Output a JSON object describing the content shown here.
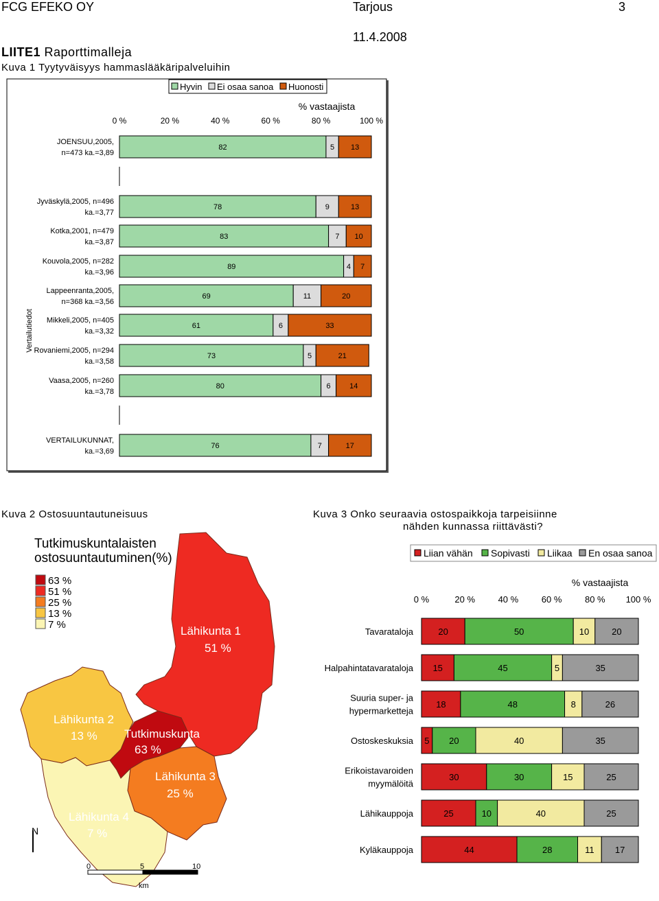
{
  "header": {
    "company": "FCG EFEKO OY",
    "doc_type": "Tarjous",
    "page_number": "3",
    "date": "11.4.2008"
  },
  "section": {
    "appendix_bold": "LIITE1",
    "appendix_rest": "Raporttimalleja",
    "figure1_caption": "Kuva 1 Tyytyväisyys hammaslääkäripalveluihin",
    "figure2_caption": "Kuva 2 Ostosuuntautuneisuus",
    "figure3_caption_line1": "Kuva 3 Onko seuraavia ostospaikkoja tarpeisiinne",
    "figure3_caption_line2": "nähden kunnassa riittävästi?"
  },
  "chart_data": [
    {
      "type": "bar",
      "stacked": true,
      "orientation": "horizontal",
      "legend": [
        "Hyvin",
        "Ei osaa sanoa",
        "Huonosti"
      ],
      "legend_position": "top",
      "axis_title": "% vastaajista",
      "x_ticks": [
        "0 %",
        "20 %",
        "40 %",
        "60 %",
        "80 %",
        "100 %"
      ],
      "xlim": [
        0,
        100
      ],
      "group_label": "Vertailutiedot",
      "colors": [
        "#9fd8a6",
        "#dcdcdc",
        "#d05a0e"
      ],
      "categories": [
        [
          "JOENSUU,2005,",
          "n=473 ka.=3,89"
        ],
        [
          "Jyväskylä,2005, n=496",
          "ka.=3,77"
        ],
        [
          "Kotka,2001, n=479",
          "ka.=3,87"
        ],
        [
          "Kouvola,2005, n=282",
          "ka.=3,96"
        ],
        [
          "Lappeenranta,2005,",
          "n=368 ka.=3,56"
        ],
        [
          "Mikkeli,2005, n=405",
          "ka.=3,32"
        ],
        [
          "Rovaniemi,2005, n=294",
          "ka.=3,58"
        ],
        [
          "Vaasa,2005, n=260",
          "ka.=3,78"
        ],
        [
          "VERTAILUKUNNAT,",
          "ka.=3,69"
        ]
      ],
      "series": [
        {
          "name": "Hyvin",
          "values": [
            82,
            78,
            83,
            89,
            69,
            61,
            73,
            80,
            76
          ]
        },
        {
          "name": "Ei osaa sanoa",
          "values": [
            5,
            9,
            7,
            4,
            11,
            6,
            5,
            6,
            7
          ]
        },
        {
          "name": "Huonosti",
          "values": [
            13,
            13,
            10,
            7,
            20,
            33,
            21,
            14,
            17
          ]
        }
      ]
    },
    {
      "type": "bar",
      "stacked": true,
      "orientation": "horizontal",
      "legend": [
        "Liian vähän",
        "Sopivasti",
        "Liikaa",
        "En osaa sanoa"
      ],
      "legend_position": "top",
      "axis_title": "% vastaajista",
      "x_ticks": [
        "0 %",
        "20 %",
        "40 %",
        "60 %",
        "80 %",
        "100 %"
      ],
      "xlim": [
        0,
        100
      ],
      "colors": [
        "#d42020",
        "#56b449",
        "#f2eaa0",
        "#9a9a9a"
      ],
      "categories": [
        [
          "Tavarataloja"
        ],
        [
          "Halpahintatavarataloja"
        ],
        [
          "Suuria super- ja",
          "hypermarketteja"
        ],
        [
          "Ostoskeskuksia"
        ],
        [
          "Erikoistavaroiden",
          "myymälöitä"
        ],
        [
          "Lähikauppoja"
        ],
        [
          "Kyläkauppoja"
        ]
      ],
      "series": [
        {
          "name": "Liian vähän",
          "values": [
            20,
            15,
            18,
            5,
            30,
            25,
            44
          ]
        },
        {
          "name": "Sopivasti",
          "values": [
            50,
            45,
            48,
            20,
            30,
            10,
            28
          ]
        },
        {
          "name": "Liikaa",
          "values": [
            10,
            5,
            8,
            40,
            15,
            40,
            11
          ]
        },
        {
          "name": "En osaa sanoa",
          "values": [
            20,
            35,
            26,
            35,
            25,
            25,
            17
          ]
        }
      ]
    }
  ],
  "map": {
    "title_line1": "Tutkimuskuntalaisten",
    "title_line2": "ostosuuntautuminen(%)",
    "legend": [
      {
        "label": "63 %",
        "color": "#c00a10"
      },
      {
        "label": "51 %",
        "color": "#ee2a22"
      },
      {
        "label": "25 %",
        "color": "#f47c20"
      },
      {
        "label": "13 %",
        "color": "#f8c642"
      },
      {
        "label": "7 %",
        "color": "#fbf5b4"
      }
    ],
    "regions": [
      {
        "name": "Lähikunta 1",
        "value": "51 %"
      },
      {
        "name": "Lähikunta 2",
        "value": "13 %"
      },
      {
        "name": "Tutkimuskunta",
        "value": "63 %"
      },
      {
        "name": "Lähikunta 3",
        "value": "25 %"
      },
      {
        "name": "Lähikunta 4",
        "value": "7 %"
      }
    ],
    "north": "N",
    "scale": [
      "0",
      "5",
      "10"
    ],
    "scale_unit": "km"
  }
}
